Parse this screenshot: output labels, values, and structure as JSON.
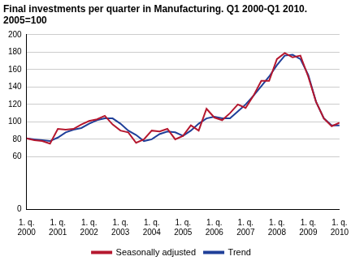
{
  "chart_data": {
    "type": "line",
    "title": "Final investments per quarter in Manufacturing. Q1 2000-Q1 2010.",
    "subtitle": "2005=100",
    "categories": [
      "1. q. 2000",
      null,
      null,
      null,
      "1. q. 2001",
      null,
      null,
      null,
      "1. q. 2002",
      null,
      null,
      null,
      "1. q. 2003",
      null,
      null,
      null,
      "1. q. 2004",
      null,
      null,
      null,
      "1. q. 2005",
      null,
      null,
      null,
      "1. q. 2006",
      null,
      null,
      null,
      "1. q. 2007",
      null,
      null,
      null,
      "1. q. 2008",
      null,
      null,
      null,
      "1. q. 2009",
      null,
      null,
      null,
      "1. q. 2010"
    ],
    "series": [
      {
        "name": "Seasonally adjusted",
        "color": "#b5172e",
        "values": [
          81,
          79,
          78,
          75,
          92,
          91,
          92,
          97,
          101,
          103,
          107,
          97,
          90,
          88,
          76,
          80,
          90,
          89,
          92,
          80,
          84,
          96,
          90,
          115,
          105,
          102,
          110,
          120,
          116,
          130,
          147,
          147,
          172,
          179,
          174,
          176,
          152,
          123,
          104,
          95,
          99
        ]
      },
      {
        "name": "Trend",
        "color": "#1f3f99",
        "values": [
          81,
          80,
          79,
          78,
          82,
          88,
          91,
          93,
          98,
          102,
          104,
          104,
          98,
          90,
          85,
          78,
          80,
          86,
          89,
          88,
          84,
          90,
          98,
          104,
          106,
          104,
          104,
          112,
          120,
          130,
          141,
          152,
          165,
          176,
          177,
          172,
          154,
          123,
          104,
          96,
          96
        ]
      }
    ],
    "ylim": [
      0,
      200
    ],
    "yticks": [
      0,
      60,
      80,
      100,
      120,
      140,
      160,
      180,
      200
    ],
    "grid": true,
    "legend": "bottom"
  }
}
